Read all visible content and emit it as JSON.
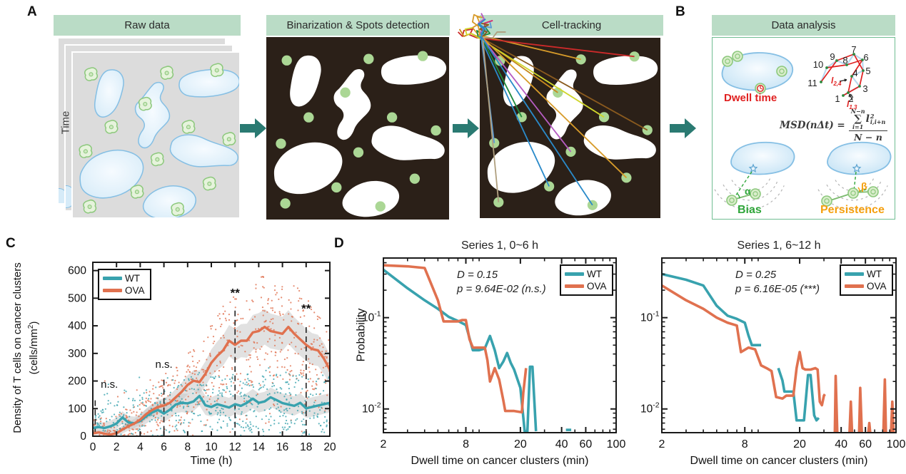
{
  "panel_labels": {
    "a": "A",
    "b": "B",
    "c": "C",
    "d": "D"
  },
  "colors": {
    "teal": "#38a2ae",
    "orange": "#e0714f",
    "mint": "#badcc6",
    "arrow": "#2a7a72",
    "dark_bg": "#2b2018",
    "dot_green": "#abd795",
    "frame_gray": "#dcdcdc",
    "blob_stroke": "#85bfe4",
    "blob_fill": "#d6ebf8",
    "cell_stroke": "#8cc87c",
    "cell_fill": "#e6f3dc",
    "red": "#e02020",
    "bias_green": "#2fa63a",
    "persistence_orange": "#f59f0e",
    "box_border_green": "#70bd92",
    "band_gray": "#c9c9c9",
    "ink": "#1a1a1a",
    "track_colors": [
      "#d6246e",
      "#d79b2a",
      "#cc2a2a",
      "#c8881e",
      "#1e8a3c",
      "#cfd52a",
      "#5b9bd5",
      "#b65cc2",
      "#8a5a1e",
      "#2a8ac9",
      "#d79b2a",
      "#b0a080",
      "#2a8ac9"
    ]
  },
  "panel_a": {
    "steps": [
      "Raw data",
      "Binarization & Spots detection",
      "Cell-tracking"
    ],
    "time_label": "Time"
  },
  "panel_b": {
    "header": "Data analysis",
    "dwell_label": "Dwell time",
    "bias_label": "Bias",
    "persistence_label": "Persistence",
    "alpha": "α",
    "beta": "β",
    "traj_numbers": [
      "1",
      "2",
      "3",
      "4",
      "5",
      "6",
      "7",
      "8",
      "9",
      "10",
      "11"
    ],
    "l24": {
      "base": "l",
      "sub": "2,4"
    },
    "l13": {
      "base": "l",
      "sub": "1,3"
    },
    "msd": {
      "lhs": "MSD(nΔt) =",
      "sum_sup": "N−n",
      "sigma": "∑",
      "sum_sub": "i=1",
      "term_base": "l",
      "term_sup": "2",
      "term_sub": "i,i+n",
      "denom": "N − n"
    }
  },
  "chart_data": [
    {
      "type": "line",
      "title": "",
      "xlabel": "Time (h)",
      "ylabel_line1": "Density of T cells on cancer clusters",
      "ylabel_line2": {
        "pre": "(cells/mm",
        "sup": "2",
        "post": ")"
      },
      "xlim": [
        0,
        20
      ],
      "ylim": [
        0,
        630
      ],
      "xticks": [
        0,
        2,
        4,
        6,
        8,
        10,
        12,
        14,
        16,
        18,
        20
      ],
      "yticks": [
        0,
        100,
        200,
        300,
        400,
        500,
        600
      ],
      "grid": false,
      "legend_position": "top-left",
      "legend": [
        "WT",
        "OVA"
      ],
      "x_step": 0.5,
      "series": [
        {
          "name": "WT",
          "color_key": "teal",
          "values": [
            30,
            33,
            30,
            36,
            46,
            68,
            50,
            47,
            55,
            72,
            86,
            95,
            82,
            96,
            115,
            121,
            119,
            126,
            146,
            112,
            106,
            116,
            110,
            104,
            116,
            110,
            121,
            136,
            121,
            126,
            141,
            131,
            120,
            115,
            110,
            121,
            101,
            106,
            111,
            116,
            121
          ],
          "band_halfwidth": [
            [
              0,
              18
            ],
            [
              4,
              25
            ],
            [
              8,
              35
            ],
            [
              20,
              35
            ]
          ]
        },
        {
          "name": "OVA",
          "color_key": "orange",
          "values": [
            10,
            14,
            9,
            6,
            11,
            24,
            36,
            46,
            60,
            80,
            95,
            106,
            111,
            121,
            141,
            161,
            186,
            201,
            196,
            226,
            266,
            291,
            311,
            346,
            331,
            346,
            346,
            376,
            381,
            396,
            381,
            376,
            371,
            396,
            371,
            351,
            331,
            316,
            311,
            281,
            241
          ],
          "band_halfwidth": [
            [
              0,
              8
            ],
            [
              4,
              18
            ],
            [
              8,
              35
            ],
            [
              11,
              55
            ],
            [
              14,
              65
            ],
            [
              17,
              60
            ],
            [
              20,
              55
            ]
          ]
        }
      ],
      "annotations": [
        {
          "x": 0.2,
          "line_top": 130,
          "label": "n.s.",
          "label_at": [
            1.4,
            175
          ]
        },
        {
          "x": 6,
          "line_top": 205,
          "label": "n.s.",
          "label_at": [
            6,
            248
          ]
        },
        {
          "x": 12,
          "line_top": 455,
          "label": "**",
          "label_at": [
            12,
            505
          ]
        },
        {
          "x": 18,
          "line_top": 395,
          "label": "**",
          "label_at": [
            18,
            448
          ]
        }
      ]
    },
    {
      "type": "line-loglog",
      "title": "Series 1, 0~6 h",
      "xlabel": "Dwell time on cancer clusters (min)",
      "ylabel": "Probability",
      "xlim": [
        2,
        100
      ],
      "ylim": [
        0.0055,
        0.45
      ],
      "xticks_major": [
        2,
        8,
        20,
        40,
        60,
        100
      ],
      "xticks_minor": [
        3,
        4,
        5,
        6,
        7,
        9,
        10,
        30,
        50,
        70,
        80,
        90
      ],
      "yticks_major": [
        {
          "v": 0.1,
          "exp": "-1"
        },
        {
          "v": 0.01,
          "exp": "-2"
        }
      ],
      "yticks_minor": [
        0.4,
        0.3,
        0.2,
        0.09,
        0.08,
        0.07,
        0.06,
        0.05,
        0.04,
        0.03,
        0.02,
        0.009,
        0.008,
        0.007,
        0.006
      ],
      "annotation_line1": "D = 0.15",
      "annotation_line2": "p = 9.64E-02 (n.s.)",
      "legend": [
        "WT",
        "OVA"
      ],
      "series": [
        {
          "name": "WT",
          "color_key": "teal",
          "segments": [
            [
              [
                2,
                0.335
              ],
              [
                3,
                0.21
              ],
              [
                4,
                0.155
              ],
              [
                5,
                0.125
              ],
              [
                6,
                0.102
              ],
              [
                7,
                0.092
              ],
              [
                8,
                0.083
              ],
              [
                9,
                0.044
              ],
              [
                10,
                0.044
              ],
              [
                11,
                0.046
              ],
              [
                12,
                0.063
              ],
              [
                13,
                0.044
              ],
              [
                14,
                0.028
              ],
              [
                15,
                0.033
              ],
              [
                16,
                0.041
              ],
              [
                17,
                0.032
              ],
              [
                18,
                0.027
              ],
              [
                20,
                0.017
              ],
              [
                21.5,
                0.0057
              ],
              [
                22.5,
                0.0057
              ],
              [
                23.5,
                0.029
              ],
              [
                24.5,
                0.029
              ],
              [
                26,
                0.0057
              ]
            ],
            [
              [
                43,
                0.0059
              ],
              [
                47,
                0.0059
              ]
            ]
          ]
        },
        {
          "name": "OVA",
          "color_key": "orange",
          "segments": [
            [
              [
                2,
                0.375
              ],
              [
                3,
                0.365
              ],
              [
                4,
                0.35
              ],
              [
                5,
                0.155
              ],
              [
                5.5,
                0.091
              ],
              [
                7,
                0.091
              ],
              [
                7.5,
                0.094
              ],
              [
                8,
                0.094
              ],
              [
                8.5,
                0.058
              ],
              [
                9,
                0.047
              ],
              [
                11,
                0.047
              ],
              [
                11.5,
                0.034
              ],
              [
                12,
                0.02
              ],
              [
                13,
                0.028
              ],
              [
                14,
                0.021
              ],
              [
                15,
                0.0125
              ],
              [
                15.5,
                0.0095
              ],
              [
                18,
                0.0095
              ],
              [
                20.5,
                0.0092
              ],
              [
                21,
                0.015
              ],
              [
                22,
                0.028
              ]
            ]
          ]
        }
      ]
    },
    {
      "type": "line-loglog",
      "title": "Series 1, 6~12 h",
      "xlabel": "Dwell time on cancer clusters (min)",
      "ylabel": "",
      "xlim": [
        2,
        100
      ],
      "ylim": [
        0.0055,
        0.45
      ],
      "xticks_major": [
        2,
        8,
        20,
        40,
        60,
        100
      ],
      "xticks_minor": [
        3,
        4,
        5,
        6,
        7,
        9,
        10,
        30,
        50,
        70,
        80,
        90
      ],
      "yticks_major": [
        {
          "v": 0.1,
          "exp": "-1"
        },
        {
          "v": 0.01,
          "exp": "-2"
        }
      ],
      "yticks_minor": [
        0.4,
        0.3,
        0.2,
        0.09,
        0.08,
        0.07,
        0.06,
        0.05,
        0.04,
        0.03,
        0.02,
        0.009,
        0.008,
        0.007,
        0.006
      ],
      "annotation_line1": "D = 0.25",
      "annotation_line2": "p = 6.16E-05 (***)",
      "legend": [
        "WT",
        "OVA"
      ],
      "series": [
        {
          "name": "WT",
          "color_key": "teal",
          "segments": [
            [
              [
                2,
                0.3
              ],
              [
                3,
                0.26
              ],
              [
                4,
                0.225
              ],
              [
                5,
                0.135
              ],
              [
                6,
                0.105
              ],
              [
                7,
                0.097
              ],
              [
                8,
                0.088
              ],
              [
                8.5,
                0.064
              ],
              [
                9,
                0.05
              ],
              [
                10.5,
                0.05
              ]
            ],
            [
              [
                14,
                0.028
              ],
              [
                15,
                0.0205
              ],
              [
                15.5,
                0.0155
              ],
              [
                18,
                0.0155
              ],
              [
                19,
                0.0075
              ],
              [
                21.5,
                0.0075
              ],
              [
                23,
                0.0235
              ],
              [
                24,
                0.0235
              ],
              [
                25.5,
                0.0085
              ],
              [
                26.5,
                0.0075
              ],
              [
                27.5,
                0.008
              ]
            ]
          ]
        },
        {
          "name": "OVA",
          "color_key": "orange",
          "segments": [
            [
              [
                2,
                0.225
              ],
              [
                3,
                0.155
              ],
              [
                4,
                0.125
              ],
              [
                5,
                0.1
              ],
              [
                6,
                0.088
              ],
              [
                7,
                0.082
              ],
              [
                7.5,
                0.042
              ],
              [
                8.5,
                0.047
              ],
              [
                9.5,
                0.045
              ],
              [
                10.5,
                0.03
              ],
              [
                11.5,
                0.028
              ],
              [
                12.5,
                0.026
              ],
              [
                13.5,
                0.0135
              ],
              [
                15,
                0.013
              ],
              [
                16,
                0.014
              ],
              [
                18,
                0.014
              ],
              [
                19,
                0.028
              ],
              [
                20,
                0.042
              ],
              [
                21,
                0.028
              ],
              [
                22,
                0.027
              ],
              [
                24,
                0.027
              ],
              [
                26,
                0.028
              ],
              [
                27,
                0.027
              ],
              [
                28,
                0.012
              ],
              [
                29,
                0.011
              ],
              [
                30,
                0.014
              ],
              [
                30.5,
                0.0145
              ]
            ],
            [
              [
                36,
                0.0055
              ],
              [
                36.5,
                0.023
              ],
              [
                37.5,
                0.0055
              ]
            ],
            [
              [
                46,
                0.0055
              ],
              [
                47,
                0.012
              ],
              [
                48,
                0.0055
              ]
            ],
            [
              [
                54,
                0.0055
              ],
              [
                55,
                0.017
              ],
              [
                56.5,
                0.0055
              ]
            ],
            [
              [
                63,
                0.0055
              ],
              [
                64,
                0.007
              ],
              [
                65,
                0.0055
              ]
            ],
            [
              [
                81,
                0.0055
              ],
              [
                83,
                0.021
              ],
              [
                84.5,
                0.0055
              ]
            ],
            [
              [
                92,
                0.0055
              ],
              [
                94,
                0.012
              ],
              [
                96,
                0.0055
              ]
            ]
          ]
        }
      ]
    }
  ]
}
